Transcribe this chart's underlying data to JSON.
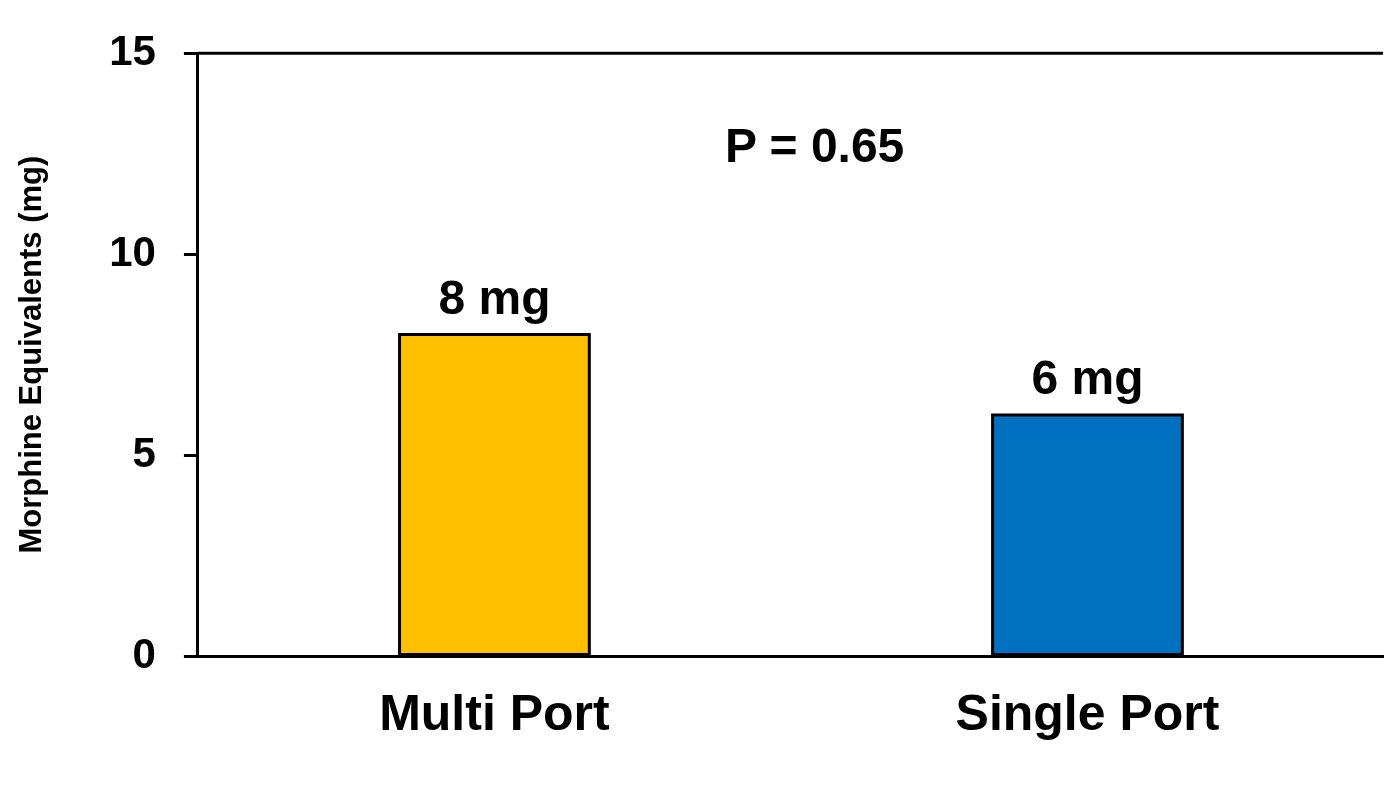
{
  "chart_data": {
    "type": "bar",
    "ylabel": "Morphine Equivalents (mg)",
    "categories": [
      "Multi Port",
      "Single Port"
    ],
    "values": [
      8,
      6
    ],
    "colors": [
      "#ffc000",
      "#0070c0"
    ],
    "value_labels": [
      "8 mg",
      "6 mg"
    ],
    "ylim": [
      0,
      15
    ],
    "yticks": [
      0,
      5,
      10,
      15
    ],
    "grid": false,
    "legend": false,
    "annotations": [
      "P = 0.65"
    ]
  }
}
